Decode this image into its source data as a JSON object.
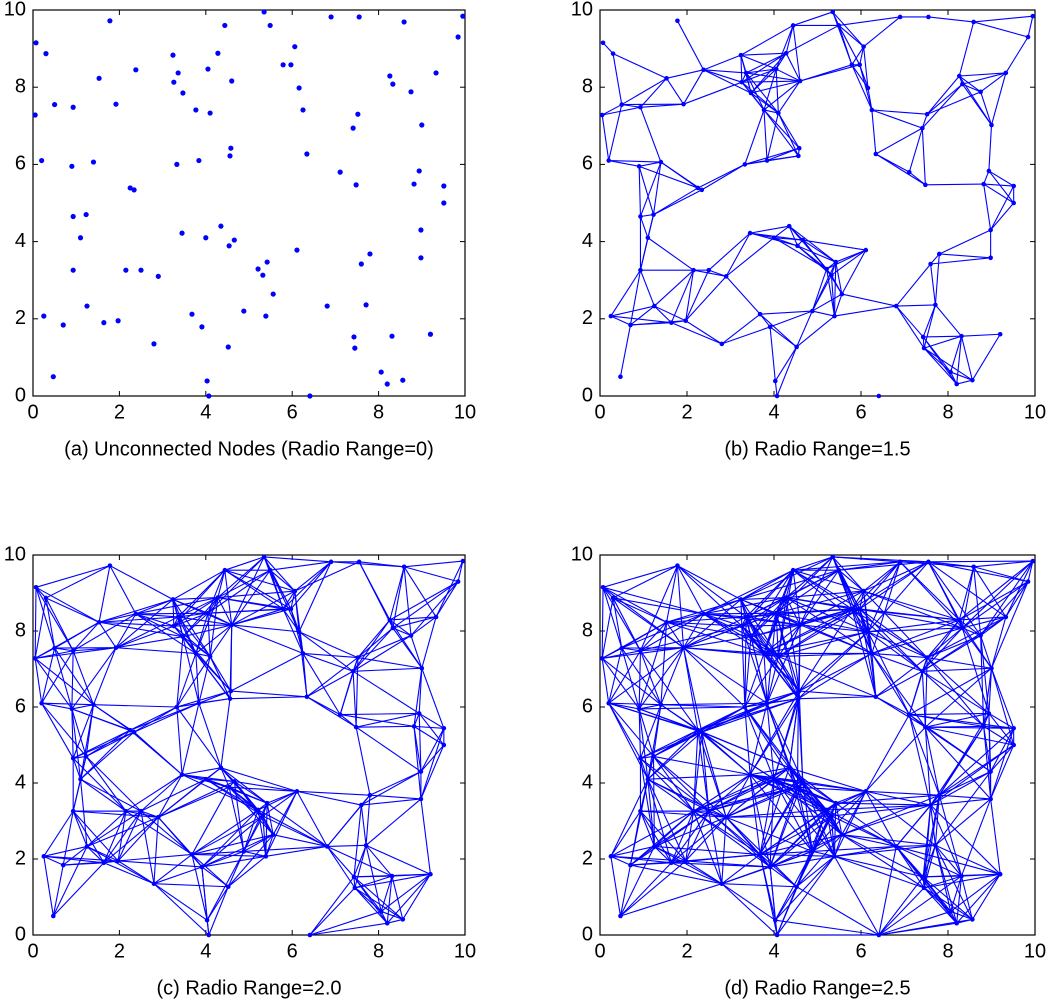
{
  "chart_data": [
    {
      "type": "network",
      "title": "(a) Unconnected Nodes (Radio Range=0)",
      "radio_range": 0,
      "color": "#0000ff",
      "xlim": [
        0,
        10
      ],
      "ylim": [
        0,
        10
      ],
      "xticks": [
        0,
        2,
        4,
        6,
        8,
        10
      ],
      "yticks": [
        0,
        2,
        4,
        6,
        8,
        10
      ],
      "x": [
        0.07,
        0.05,
        0.3,
        0.2,
        0.5,
        0.93,
        0.9,
        0.25,
        0.7,
        0.47,
        0.93,
        1.1,
        1.23,
        0.93,
        1.25,
        1.4,
        1.53,
        1.78,
        1.92,
        1.64,
        1.97,
        2.15,
        2.25,
        2.34,
        2.38,
        2.5,
        2.9,
        2.8,
        3.24,
        3.26,
        3.36,
        3.33,
        3.45,
        3.47,
        3.68,
        3.77,
        3.84,
        3.91,
        4.0,
        4.03,
        4.07,
        4.05,
        4.1,
        4.28,
        4.35,
        4.44,
        4.52,
        4.56,
        4.58,
        4.6,
        4.66,
        4.54,
        4.88,
        5.21,
        5.35,
        5.42,
        5.49,
        5.39,
        5.32,
        5.56,
        5.79,
        5.97,
        6.06,
        6.16,
        6.25,
        6.11,
        6.34,
        6.41,
        6.9,
        6.81,
        7.11,
        7.41,
        7.52,
        7.55,
        7.48,
        7.6,
        7.71,
        7.8,
        7.43,
        7.45,
        8.06,
        8.2,
        8.31,
        8.26,
        8.33,
        8.56,
        8.59,
        8.75,
        8.82,
        8.94,
        9.0,
        8.98,
        8.98,
        9.33,
        9.2,
        9.51,
        9.51,
        9.84,
        9.95
      ],
      "y": [
        9.15,
        7.28,
        8.87,
        6.1,
        7.55,
        7.48,
        5.95,
        2.07,
        1.84,
        0.5,
        4.65,
        4.1,
        4.7,
        3.26,
        2.33,
        6.06,
        8.23,
        9.72,
        7.56,
        1.9,
        1.95,
        3.26,
        5.39,
        5.34,
        8.45,
        3.26,
        3.1,
        1.35,
        8.83,
        8.13,
        8.37,
        6.0,
        4.22,
        7.85,
        2.12,
        7.41,
        6.1,
        1.79,
        4.1,
        0.39,
        0.0,
        8.47,
        7.33,
        8.88,
        4.4,
        9.6,
        1.27,
        6.22,
        6.42,
        8.16,
        4.04,
        3.89,
        2.2,
        3.29,
        9.95,
        3.47,
        9.6,
        2.07,
        3.13,
        2.64,
        8.58,
        8.58,
        9.05,
        7.98,
        7.41,
        3.78,
        6.27,
        0.0,
        9.82,
        2.33,
        5.8,
        6.94,
        7.3,
        9.82,
        5.47,
        3.42,
        2.36,
        3.68,
        1.53,
        1.24,
        0.62,
        0.31,
        1.55,
        8.29,
        8.08,
        0.41,
        9.69,
        7.88,
        5.49,
        5.83,
        7.02,
        4.3,
        3.58,
        8.37,
        1.6,
        5.44,
        5.0,
        9.3,
        9.84
      ]
    },
    {
      "type": "network",
      "title": "(b) Radio Range=1.5",
      "radio_range": 1.5,
      "color": "#0000ff",
      "xlim": [
        0,
        10
      ],
      "ylim": [
        0,
        10
      ],
      "xticks": [
        0,
        2,
        4,
        6,
        8,
        10
      ],
      "yticks": [
        0,
        2,
        4,
        6,
        8,
        10
      ],
      "x": [
        0.07,
        0.05,
        0.3,
        0.2,
        0.5,
        0.93,
        0.9,
        0.25,
        0.7,
        0.47,
        0.93,
        1.1,
        1.23,
        0.93,
        1.25,
        1.4,
        1.53,
        1.78,
        1.92,
        1.64,
        1.97,
        2.15,
        2.25,
        2.34,
        2.38,
        2.5,
        2.9,
        2.8,
        3.24,
        3.26,
        3.36,
        3.33,
        3.45,
        3.47,
        3.68,
        3.77,
        3.84,
        3.91,
        4.0,
        4.03,
        4.07,
        4.05,
        4.1,
        4.28,
        4.35,
        4.44,
        4.52,
        4.56,
        4.58,
        4.6,
        4.66,
        4.54,
        4.88,
        5.21,
        5.35,
        5.42,
        5.49,
        5.39,
        5.32,
        5.56,
        5.79,
        5.97,
        6.06,
        6.16,
        6.25,
        6.11,
        6.34,
        6.41,
        6.9,
        6.81,
        7.11,
        7.41,
        7.52,
        7.55,
        7.48,
        7.6,
        7.71,
        7.8,
        7.43,
        7.45,
        8.06,
        8.2,
        8.31,
        8.26,
        8.33,
        8.56,
        8.59,
        8.75,
        8.82,
        8.94,
        9.0,
        8.98,
        8.98,
        9.33,
        9.2,
        9.51,
        9.51,
        9.84,
        9.95
      ],
      "y": [
        9.15,
        7.28,
        8.87,
        6.1,
        7.55,
        7.48,
        5.95,
        2.07,
        1.84,
        0.5,
        4.65,
        4.1,
        4.7,
        3.26,
        2.33,
        6.06,
        8.23,
        9.72,
        7.56,
        1.9,
        1.95,
        3.26,
        5.39,
        5.34,
        8.45,
        3.26,
        3.1,
        1.35,
        8.83,
        8.13,
        8.37,
        6.0,
        4.22,
        7.85,
        2.12,
        7.41,
        6.1,
        1.79,
        4.1,
        0.39,
        0.0,
        8.47,
        7.33,
        8.88,
        4.4,
        9.6,
        1.27,
        6.22,
        6.42,
        8.16,
        4.04,
        3.89,
        2.2,
        3.29,
        9.95,
        3.47,
        9.6,
        2.07,
        3.13,
        2.64,
        8.58,
        8.58,
        9.05,
        7.98,
        7.41,
        3.78,
        6.27,
        0.0,
        9.82,
        2.33,
        5.8,
        6.94,
        7.3,
        9.82,
        5.47,
        3.42,
        2.36,
        3.68,
        1.53,
        1.24,
        0.62,
        0.31,
        1.55,
        8.29,
        8.08,
        0.41,
        9.69,
        7.88,
        5.49,
        5.83,
        7.02,
        4.3,
        3.58,
        8.37,
        1.6,
        5.44,
        5.0,
        9.3,
        9.84
      ]
    },
    {
      "type": "network",
      "title": "(c) Radio Range=2.0",
      "radio_range": 2.0,
      "color": "#0000ff",
      "xlim": [
        0,
        10
      ],
      "ylim": [
        0,
        10
      ],
      "xticks": [
        0,
        2,
        4,
        6,
        8,
        10
      ],
      "yticks": [
        0,
        2,
        4,
        6,
        8,
        10
      ],
      "x": [
        0.07,
        0.05,
        0.3,
        0.2,
        0.5,
        0.93,
        0.9,
        0.25,
        0.7,
        0.47,
        0.93,
        1.1,
        1.23,
        0.93,
        1.25,
        1.4,
        1.53,
        1.78,
        1.92,
        1.64,
        1.97,
        2.15,
        2.25,
        2.34,
        2.38,
        2.5,
        2.9,
        2.8,
        3.24,
        3.26,
        3.36,
        3.33,
        3.45,
        3.47,
        3.68,
        3.77,
        3.84,
        3.91,
        4.0,
        4.03,
        4.07,
        4.05,
        4.1,
        4.28,
        4.35,
        4.44,
        4.52,
        4.56,
        4.58,
        4.6,
        4.66,
        4.54,
        4.88,
        5.21,
        5.35,
        5.42,
        5.49,
        5.39,
        5.32,
        5.56,
        5.79,
        5.97,
        6.06,
        6.16,
        6.25,
        6.11,
        6.34,
        6.41,
        6.9,
        6.81,
        7.11,
        7.41,
        7.52,
        7.55,
        7.48,
        7.6,
        7.71,
        7.8,
        7.43,
        7.45,
        8.06,
        8.2,
        8.31,
        8.26,
        8.33,
        8.56,
        8.59,
        8.75,
        8.82,
        8.94,
        9.0,
        8.98,
        8.98,
        9.33,
        9.2,
        9.51,
        9.51,
        9.84,
        9.95
      ],
      "y": [
        9.15,
        7.28,
        8.87,
        6.1,
        7.55,
        7.48,
        5.95,
        2.07,
        1.84,
        0.5,
        4.65,
        4.1,
        4.7,
        3.26,
        2.33,
        6.06,
        8.23,
        9.72,
        7.56,
        1.9,
        1.95,
        3.26,
        5.39,
        5.34,
        8.45,
        3.26,
        3.1,
        1.35,
        8.83,
        8.13,
        8.37,
        6.0,
        4.22,
        7.85,
        2.12,
        7.41,
        6.1,
        1.79,
        4.1,
        0.39,
        0.0,
        8.47,
        7.33,
        8.88,
        4.4,
        9.6,
        1.27,
        6.22,
        6.42,
        8.16,
        4.04,
        3.89,
        2.2,
        3.29,
        9.95,
        3.47,
        9.6,
        2.07,
        3.13,
        2.64,
        8.58,
        8.58,
        9.05,
        7.98,
        7.41,
        3.78,
        6.27,
        0.0,
        9.82,
        2.33,
        5.8,
        6.94,
        7.3,
        9.82,
        5.47,
        3.42,
        2.36,
        3.68,
        1.53,
        1.24,
        0.62,
        0.31,
        1.55,
        8.29,
        8.08,
        0.41,
        9.69,
        7.88,
        5.49,
        5.83,
        7.02,
        4.3,
        3.58,
        8.37,
        1.6,
        5.44,
        5.0,
        9.3,
        9.84
      ]
    },
    {
      "type": "network",
      "title": "(d) Radio Range=2.5",
      "radio_range": 2.5,
      "color": "#0000ff",
      "xlim": [
        0,
        10
      ],
      "ylim": [
        0,
        10
      ],
      "xticks": [
        0,
        2,
        4,
        6,
        8,
        10
      ],
      "yticks": [
        0,
        2,
        4,
        6,
        8,
        10
      ],
      "x": [
        0.07,
        0.05,
        0.3,
        0.2,
        0.5,
        0.93,
        0.9,
        0.25,
        0.7,
        0.47,
        0.93,
        1.1,
        1.23,
        0.93,
        1.25,
        1.4,
        1.53,
        1.78,
        1.92,
        1.64,
        1.97,
        2.15,
        2.25,
        2.34,
        2.38,
        2.5,
        2.9,
        2.8,
        3.24,
        3.26,
        3.36,
        3.33,
        3.45,
        3.47,
        3.68,
        3.77,
        3.84,
        3.91,
        4.0,
        4.03,
        4.07,
        4.05,
        4.1,
        4.28,
        4.35,
        4.44,
        4.52,
        4.56,
        4.58,
        4.6,
        4.66,
        4.54,
        4.88,
        5.21,
        5.35,
        5.42,
        5.49,
        5.39,
        5.32,
        5.56,
        5.79,
        5.97,
        6.06,
        6.16,
        6.25,
        6.11,
        6.34,
        6.41,
        6.9,
        6.81,
        7.11,
        7.41,
        7.52,
        7.55,
        7.48,
        7.6,
        7.71,
        7.8,
        7.43,
        7.45,
        8.06,
        8.2,
        8.31,
        8.26,
        8.33,
        8.56,
        8.59,
        8.75,
        8.82,
        8.94,
        9.0,
        8.98,
        8.98,
        9.33,
        9.2,
        9.51,
        9.51,
        9.84,
        9.95
      ],
      "y": [
        9.15,
        7.28,
        8.87,
        6.1,
        7.55,
        7.48,
        5.95,
        2.07,
        1.84,
        0.5,
        4.65,
        4.1,
        4.7,
        3.26,
        2.33,
        6.06,
        8.23,
        9.72,
        7.56,
        1.9,
        1.95,
        3.26,
        5.39,
        5.34,
        8.45,
        3.26,
        3.1,
        1.35,
        8.83,
        8.13,
        8.37,
        6.0,
        4.22,
        7.85,
        2.12,
        7.41,
        6.1,
        1.79,
        4.1,
        0.39,
        0.0,
        8.47,
        7.33,
        8.88,
        4.4,
        9.6,
        1.27,
        6.22,
        6.42,
        8.16,
        4.04,
        3.89,
        2.2,
        3.29,
        9.95,
        3.47,
        9.6,
        2.07,
        3.13,
        2.64,
        8.58,
        8.58,
        9.05,
        7.98,
        7.41,
        3.78,
        6.27,
        0.0,
        9.82,
        2.33,
        5.8,
        6.94,
        7.3,
        9.82,
        5.47,
        3.42,
        2.36,
        3.68,
        1.53,
        1.24,
        0.62,
        0.31,
        1.55,
        8.29,
        8.08,
        0.41,
        9.69,
        7.88,
        5.49,
        5.83,
        7.02,
        4.3,
        3.58,
        8.37,
        1.6,
        5.44,
        5.0,
        9.3,
        9.84
      ]
    }
  ]
}
